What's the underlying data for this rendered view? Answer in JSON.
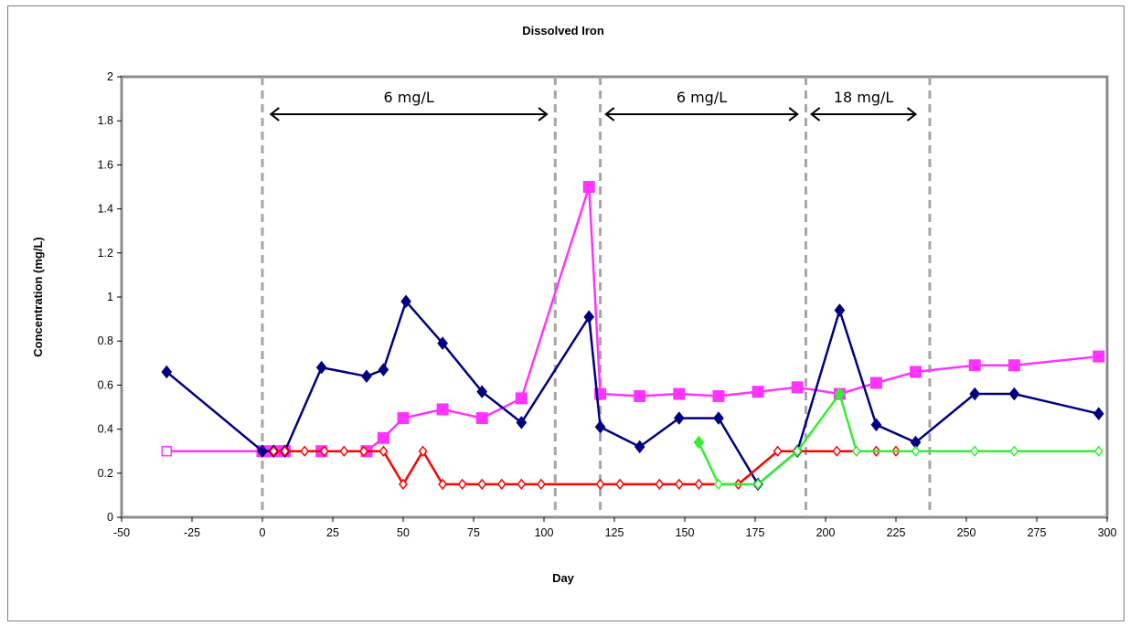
{
  "chart_data": {
    "type": "line",
    "title": "Dissolved Iron",
    "xlabel": "Day",
    "ylabel": "Concentration (mg/L)",
    "xlim": [
      -50,
      300
    ],
    "ylim": [
      0,
      2
    ],
    "xticks": [
      -50,
      -25,
      0,
      25,
      50,
      75,
      100,
      125,
      150,
      175,
      200,
      225,
      250,
      275,
      300
    ],
    "yticks": [
      0,
      0.2,
      0.4,
      0.6,
      0.8,
      1,
      1.2,
      1.4,
      1.6,
      1.8,
      2
    ],
    "grid": false,
    "legend": "none",
    "vlines": [
      0,
      104,
      120,
      193,
      237
    ],
    "annotations": [
      {
        "text": "6 mg/L",
        "x_from": 3,
        "x_to": 101,
        "y": 1.83
      },
      {
        "text": "6 mg/L",
        "x_from": 122,
        "x_to": 190,
        "y": 1.83
      },
      {
        "text": "18 mg/L",
        "x_from": 195,
        "x_to": 232,
        "y": 1.83
      }
    ],
    "series": [
      {
        "color": "#ff33ff",
        "marker": "square",
        "x": [
          -34,
          0,
          4,
          8,
          21,
          37,
          43,
          50,
          64,
          78,
          92,
          116,
          120,
          134,
          148,
          162,
          176,
          190,
          205,
          218,
          232,
          253,
          267,
          297
        ],
        "y": [
          0.3,
          0.3,
          0.3,
          0.3,
          0.3,
          0.3,
          0.36,
          0.45,
          0.49,
          0.45,
          0.54,
          1.5,
          0.56,
          0.55,
          0.56,
          0.55,
          0.57,
          0.59,
          0.56,
          0.61,
          0.66,
          0.69,
          0.69,
          0.73
        ],
        "hollow": [
          true,
          false,
          false,
          false,
          false,
          false,
          false,
          false,
          false,
          false,
          false,
          false,
          false,
          false,
          false,
          false,
          false,
          false,
          false,
          false,
          false,
          false,
          false,
          false
        ]
      },
      {
        "color": "#000080",
        "marker": "diamond",
        "x": [
          -34,
          0,
          4,
          8,
          21,
          37,
          43,
          51,
          64,
          78,
          92,
          116,
          120,
          134,
          148,
          162,
          176,
          190,
          205,
          218,
          232,
          253,
          267,
          297
        ],
        "y": [
          0.66,
          0.3,
          0.3,
          0.3,
          0.68,
          0.64,
          0.67,
          0.98,
          0.79,
          0.57,
          0.43,
          0.91,
          0.41,
          0.32,
          0.45,
          0.45,
          0.15,
          0.3,
          0.94,
          0.42,
          0.34,
          0.56,
          0.56,
          0.47
        ],
        "hollow": false
      },
      {
        "color": "#ff0000",
        "marker": "diamond",
        "x": [
          4,
          8,
          15,
          22,
          29,
          36,
          43,
          50,
          57,
          64,
          71,
          78,
          85,
          92,
          99,
          120,
          127,
          141,
          148,
          155,
          169,
          183,
          190,
          204,
          211,
          218,
          225
        ],
        "y": [
          0.3,
          0.3,
          0.3,
          0.3,
          0.3,
          0.3,
          0.3,
          0.15,
          0.3,
          0.15,
          0.15,
          0.15,
          0.15,
          0.15,
          0.15,
          0.15,
          0.15,
          0.15,
          0.15,
          0.15,
          0.15,
          0.3,
          0.3,
          0.3,
          0.3,
          0.3,
          0.3
        ],
        "hollow": true
      },
      {
        "color": "#33ee33",
        "marker": "diamond",
        "x": [
          155,
          162,
          176,
          190,
          205,
          211,
          232,
          253,
          267,
          297
        ],
        "y": [
          0.34,
          0.15,
          0.15,
          0.3,
          0.56,
          0.3,
          0.3,
          0.3,
          0.3,
          0.3
        ],
        "hollow": [
          false,
          true,
          true,
          true,
          false,
          true,
          true,
          true,
          true,
          true
        ]
      }
    ]
  }
}
